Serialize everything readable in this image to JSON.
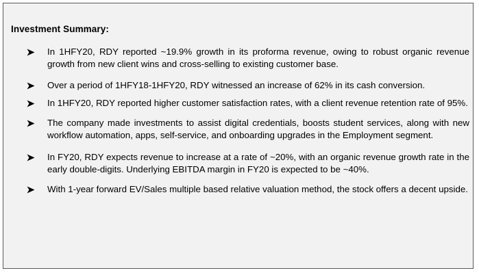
{
  "title": "Investment Summary:",
  "bullets": [
    "In 1HFY20, RDY reported ~19.9% growth in its proforma revenue, owing to robust organic revenue growth from new client wins and cross-selling to existing customer base.",
    "Over a period of 1HFY18-1HFY20, RDY witnessed an increase of 62% in its cash conversion.",
    "In 1HFY20, RDY reported higher customer satisfaction rates, with a client revenue retention rate of 95%.",
    "The company made investments to assist digital credentials, boosts student services, along with new workflow automation, apps, self-service, and onboarding upgrades in the Employment segment.",
    "In FY20, RDY expects revenue to increase at a rate of ~20%, with an organic revenue growth rate in the early double-digits. Underlying EBITDA margin in FY20 is expected to be ~40%.",
    "With 1-year forward EV/Sales multiple based relative valuation method, the stock offers a decent upside."
  ],
  "colors": {
    "box_background": "#f2f2f2",
    "box_border": "#595959",
    "text": "#000000"
  },
  "icons": {
    "bullet": "arrowhead-bullet-icon"
  }
}
